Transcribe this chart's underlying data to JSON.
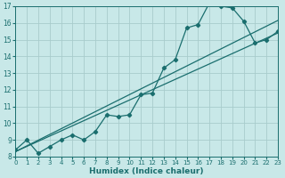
{
  "bg_color": "#c8e8e8",
  "grid_color": "#a8cccc",
  "line_color": "#1a6e6e",
  "xlabel": "Humidex (Indice chaleur)",
  "xlim": [
    0,
    23
  ],
  "ylim": [
    8,
    17
  ],
  "yticks": [
    8,
    9,
    10,
    11,
    12,
    13,
    14,
    15,
    16,
    17
  ],
  "xticks": [
    0,
    1,
    2,
    3,
    4,
    5,
    6,
    7,
    8,
    9,
    10,
    11,
    12,
    13,
    14,
    15,
    16,
    17,
    18,
    19,
    20,
    21,
    22,
    23
  ],
  "curve_x": [
    0,
    1,
    2,
    3,
    4,
    5,
    6,
    7,
    8,
    9,
    10,
    11,
    12,
    13,
    14,
    15,
    16,
    17,
    18,
    19,
    20,
    21,
    22,
    23
  ],
  "curve_y": [
    8.4,
    9.0,
    8.2,
    8.6,
    9.0,
    9.3,
    9.0,
    9.5,
    10.5,
    10.4,
    10.5,
    11.7,
    11.8,
    13.3,
    13.8,
    15.7,
    15.9,
    17.2,
    17.0,
    16.9,
    16.1,
    14.8,
    15.0,
    15.5
  ],
  "line1_x": [
    0,
    23
  ],
  "line1_y": [
    8.3,
    15.4
  ],
  "line2_x": [
    0,
    23
  ],
  "line2_y": [
    8.3,
    16.15
  ],
  "marker": "D",
  "markersize": 2.2,
  "linewidth": 0.9
}
